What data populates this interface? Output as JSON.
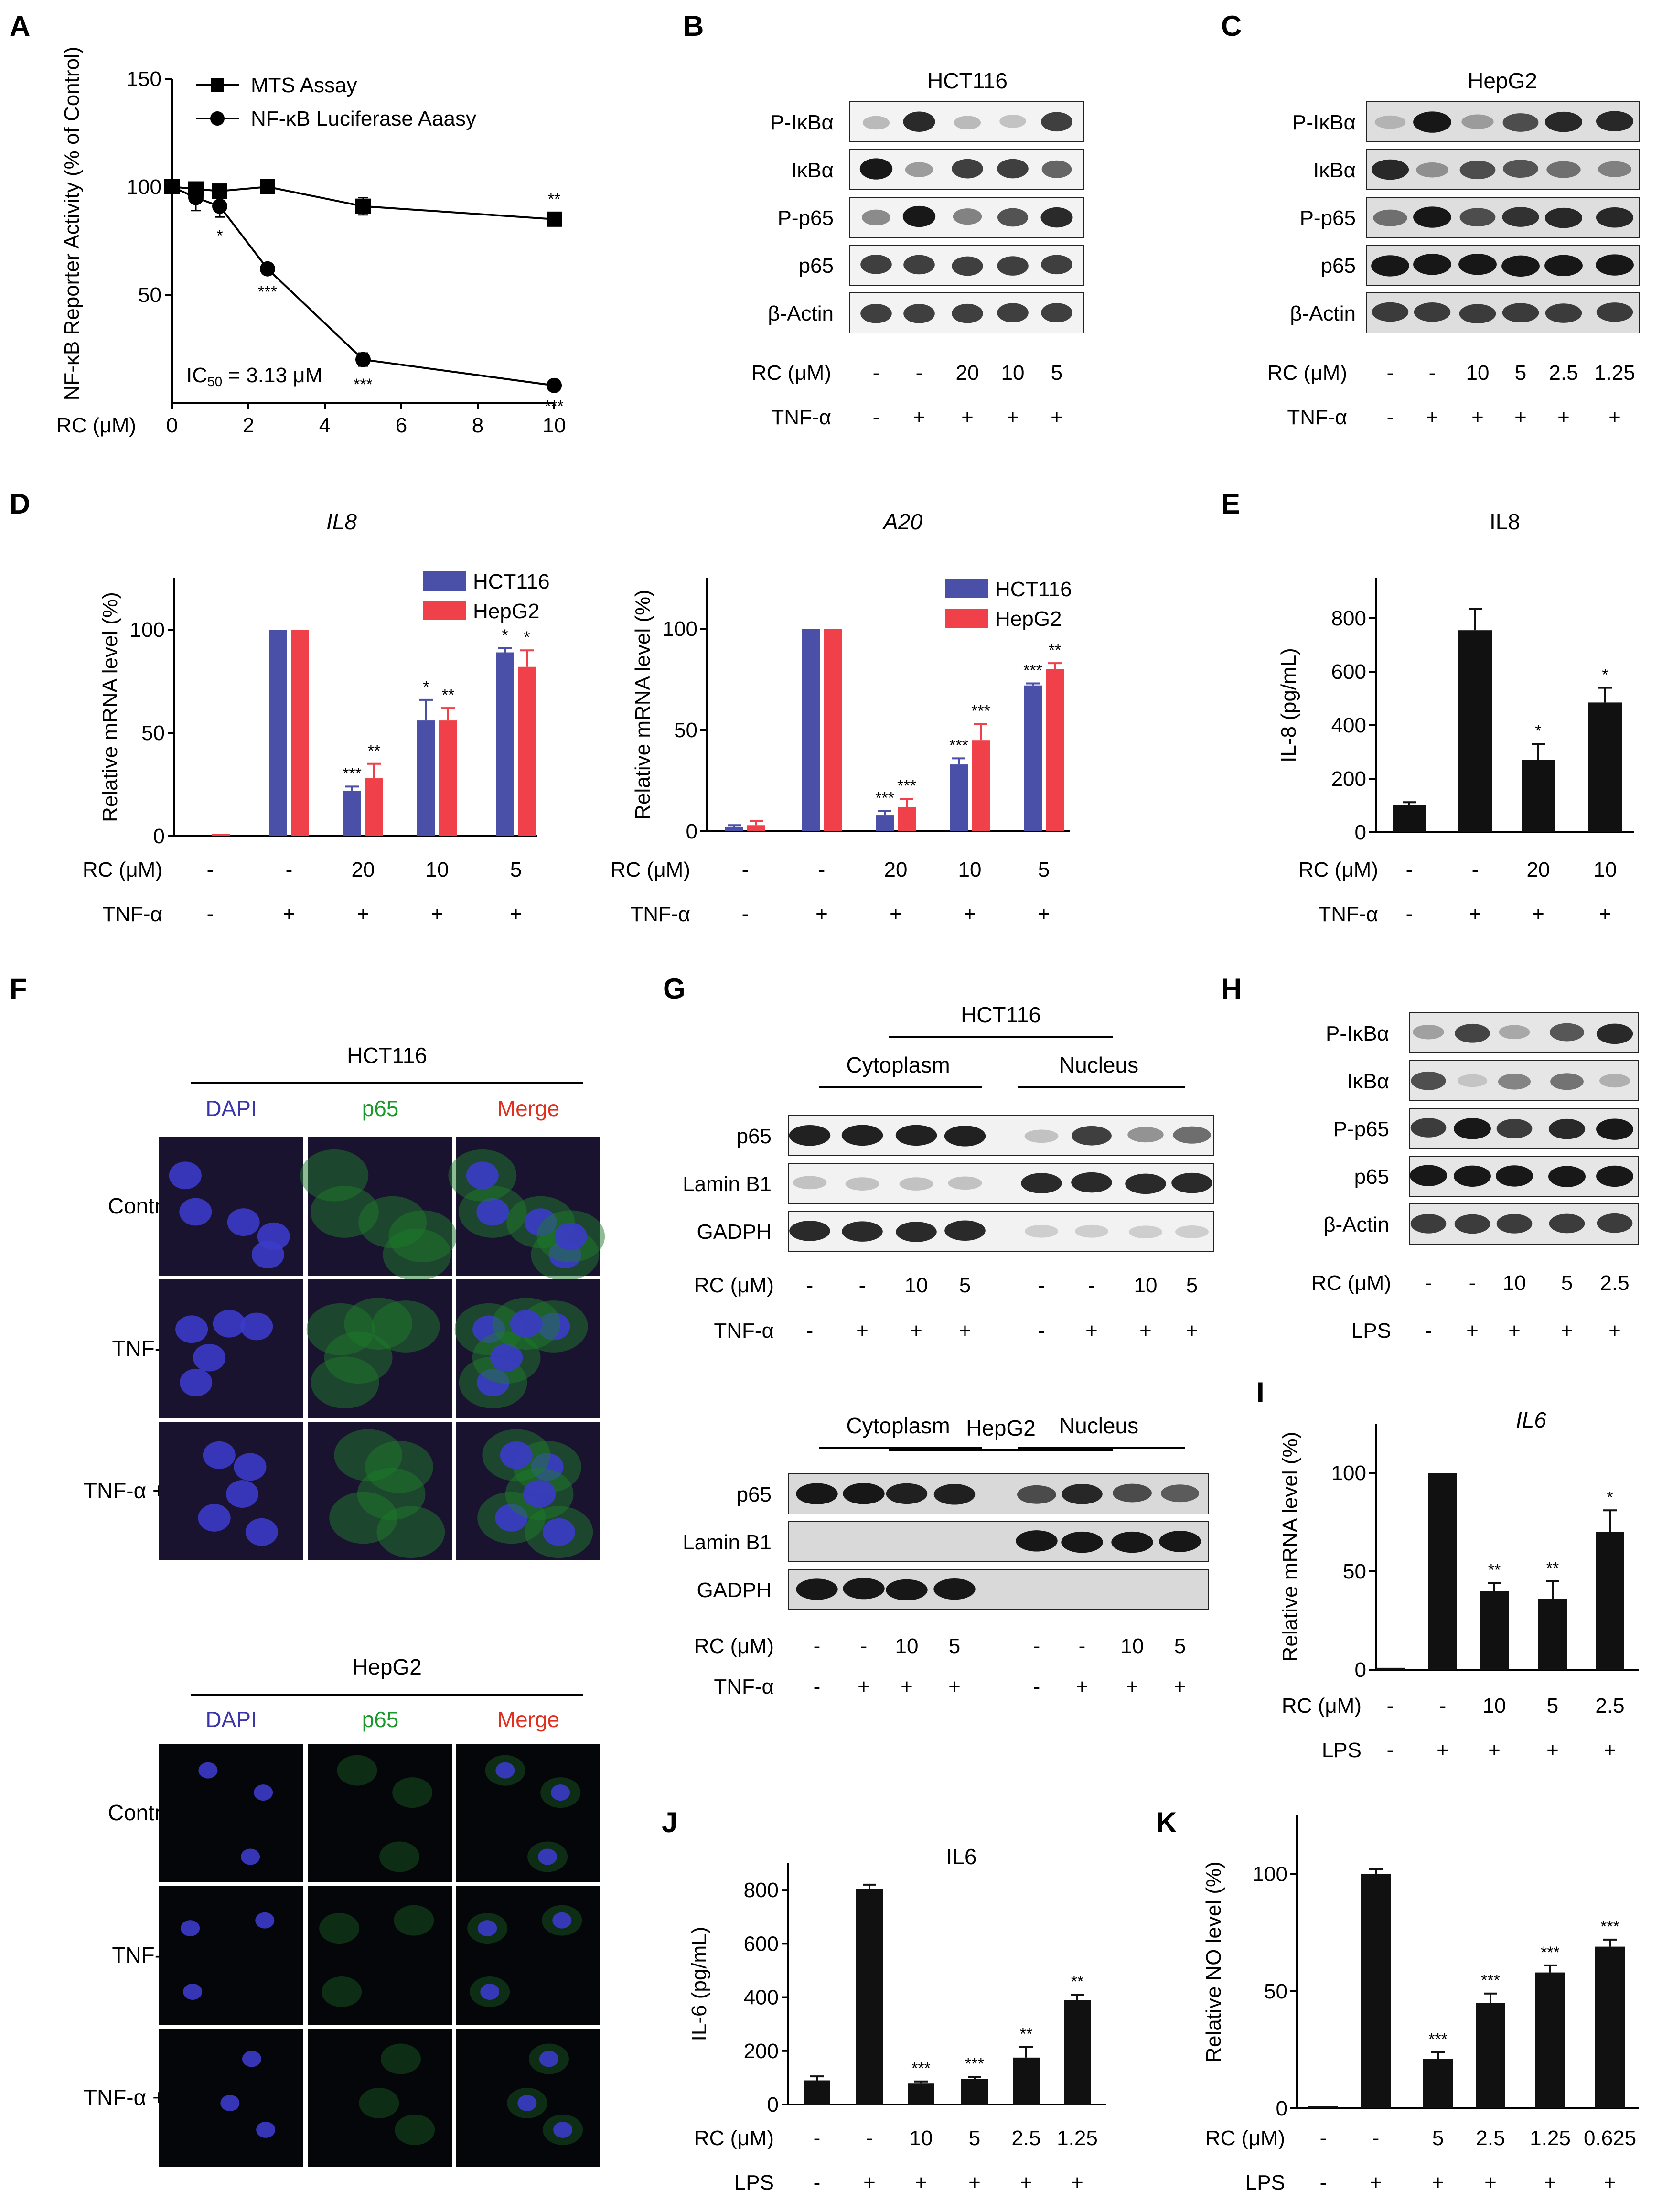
{
  "panel_letters": [
    "A",
    "B",
    "C",
    "D",
    "E",
    "F",
    "G",
    "H",
    "I",
    "J",
    "K"
  ],
  "colors": {
    "hct116": "#4a4fa8",
    "hepg2": "#f0414a",
    "bar": "#111111",
    "dapi": "#3a36a8",
    "p65": "#1a9a2a",
    "merge": "#e03020"
  },
  "blots": {
    "B": {
      "title": "HCT116",
      "proteins": [
        "P-IκBα",
        "IκBα",
        "P-p65",
        "p65",
        "β-Actin"
      ],
      "rc_label": "RC (μM)",
      "rc": [
        "-",
        "-",
        "20",
        "10",
        "5"
      ],
      "tnf_label": "TNF-α",
      "tnf": [
        "-",
        "+",
        "+",
        "+",
        "+"
      ]
    },
    "C": {
      "title": "HepG2",
      "proteins": [
        "P-IκBα",
        "IκBα",
        "P-p65",
        "p65",
        "β-Actin"
      ],
      "rc_label": "RC (μM)",
      "rc": [
        "-",
        "-",
        "10",
        "5",
        "2.5",
        "1.25"
      ],
      "tnf_label": "TNF-α",
      "tnf": [
        "-",
        "+",
        "+",
        "+",
        "+",
        "+"
      ]
    },
    "G1": {
      "title": "HCT116",
      "cyto": "Cytoplasm",
      "nucleus": "Nucleus",
      "proteins": [
        "p65",
        "Lamin B1",
        "GADPH"
      ],
      "rc_label": "RC (μM)",
      "rc": [
        "-",
        "-",
        "10",
        "5",
        "-",
        "-",
        "10",
        "5"
      ],
      "tnf_label": "TNF-α",
      "tnf": [
        "-",
        "+",
        "+",
        "+",
        "-",
        "+",
        "+",
        "+"
      ]
    },
    "G2": {
      "title": "HepG2",
      "cyto": "Cytoplasm",
      "nucleus": "Nucleus",
      "proteins": [
        "p65",
        "Lamin B1",
        "GADPH"
      ],
      "rc_label": "RC (μM)",
      "rc": [
        "-",
        "-",
        "10",
        "5",
        "-",
        "-",
        "10",
        "5"
      ],
      "tnf_label": "TNF-α",
      "tnf": [
        "-",
        "+",
        "+",
        "+",
        "-",
        "+",
        "+",
        "+"
      ]
    },
    "H": {
      "proteins": [
        "P-IκBα",
        "IκBα",
        "P-p65",
        "p65",
        "β-Actin"
      ],
      "rc_label": "RC (μM)",
      "rc": [
        "-",
        "-",
        "10",
        "5",
        "2.5"
      ],
      "lps_label": "LPS",
      "lps": [
        "-",
        "+",
        "+",
        "+",
        "+"
      ]
    }
  },
  "micro": {
    "F1": {
      "title": "HCT116",
      "cols": [
        "DAPI",
        "p65",
        "Merge"
      ],
      "rows": [
        "Control",
        "TNF-α",
        "TNF-α + RC"
      ]
    },
    "F2": {
      "title": "HepG2",
      "cols": [
        "DAPI",
        "p65",
        "Merge"
      ],
      "rows": [
        "Control",
        "TNF-α",
        "TNF-α + RC"
      ]
    }
  },
  "chart_data": [
    {
      "panel": "A",
      "type": "line",
      "ylabel": "NF-κB Reporter Activity (% of Control)",
      "xlabel": "RC (μM)",
      "xlim": [
        0,
        10
      ],
      "ylim": [
        0,
        150
      ],
      "xticks": [
        "0",
        "2",
        "4",
        "6",
        "8",
        "10"
      ],
      "yticks": [
        "50",
        "100",
        "150"
      ],
      "annotation": "IC50 = 3.13 μM",
      "series": [
        {
          "name": "MTS Assay",
          "marker": "square",
          "x": [
            0,
            0.625,
            1.25,
            2.5,
            5,
            10
          ],
          "y": [
            100,
            99,
            98,
            100,
            91,
            85
          ],
          "err": [
            2,
            3,
            3,
            2,
            4,
            2
          ],
          "stars": [
            "",
            "",
            "",
            "",
            "",
            "**"
          ]
        },
        {
          "name": "NF-κB Luciferase Aaasy",
          "marker": "circle",
          "x": [
            0,
            0.625,
            1.25,
            2.5,
            5,
            10
          ],
          "y": [
            100,
            95,
            91,
            62,
            20,
            8
          ],
          "err": [
            3,
            6,
            5,
            2,
            3,
            1
          ],
          "stars": [
            "",
            "",
            "*",
            "***",
            "***",
            "***"
          ]
        }
      ]
    },
    {
      "panel": "D-IL8",
      "type": "bar",
      "title": "IL8",
      "ylabel": "Relative mRNA level (%)",
      "ylim": [
        0,
        125
      ],
      "yticks": [
        "0",
        "50",
        "100"
      ],
      "categories": [
        "1",
        "2",
        "3",
        "4",
        "5"
      ],
      "rc_label": "RC (μM)",
      "rc": [
        "-",
        "-",
        "20",
        "10",
        "5"
      ],
      "tnf_label": "TNF-α",
      "tnf": [
        "-",
        "+",
        "+",
        "+",
        "+"
      ],
      "series": [
        {
          "name": "HCT116",
          "values": [
            0,
            100,
            22,
            56,
            89
          ],
          "err": [
            0,
            0,
            2,
            10,
            2
          ],
          "stars": [
            "",
            "",
            "***",
            "*",
            "*"
          ]
        },
        {
          "name": "HepG2",
          "values": [
            1,
            100,
            28,
            56,
            82
          ],
          "err": [
            0,
            0,
            7,
            6,
            8
          ],
          "stars": [
            "",
            "",
            "**",
            "**",
            "*"
          ]
        }
      ]
    },
    {
      "panel": "D-A20",
      "type": "bar",
      "title": "A20",
      "ylabel": "Relative mRNA level (%)",
      "ylim": [
        0,
        125
      ],
      "yticks": [
        "0",
        "50",
        "100"
      ],
      "categories": [
        "1",
        "2",
        "3",
        "4",
        "5"
      ],
      "rc_label": "RC (μM)",
      "rc": [
        "-",
        "-",
        "20",
        "10",
        "5"
      ],
      "tnf_label": "TNF-α",
      "tnf": [
        "-",
        "+",
        "+",
        "+",
        "+"
      ],
      "series": [
        {
          "name": "HCT116",
          "values": [
            2,
            100,
            8,
            33,
            72
          ],
          "err": [
            1,
            0,
            2,
            3,
            1
          ],
          "stars": [
            "",
            "",
            "***",
            "***",
            "***"
          ]
        },
        {
          "name": "HepG2",
          "values": [
            3,
            100,
            12,
            45,
            80
          ],
          "err": [
            2,
            0,
            4,
            8,
            3
          ],
          "stars": [
            "",
            "",
            "***",
            "***",
            "**"
          ]
        }
      ]
    },
    {
      "panel": "E",
      "type": "bar",
      "title": "IL8",
      "ylabel": "IL-8 (pg/mL)",
      "ylim": [
        0,
        950
      ],
      "yticks": [
        "0",
        "200",
        "400",
        "600",
        "800"
      ],
      "categories": [
        "1",
        "2",
        "3",
        "4"
      ],
      "rc_label": "RC (μM)",
      "rc": [
        "-",
        "-",
        "20",
        "10"
      ],
      "tnf_label": "TNF-α",
      "tnf": [
        "-",
        "+",
        "+",
        "+"
      ],
      "series": [
        {
          "values": [
            100,
            755,
            270,
            485
          ],
          "err": [
            12,
            80,
            60,
            55
          ],
          "stars": [
            "",
            "",
            "*",
            "*"
          ]
        }
      ]
    },
    {
      "panel": "I",
      "type": "bar",
      "title": "IL6",
      "ylabel": "Relative mRNA level (%)",
      "ylim": [
        0,
        125
      ],
      "yticks": [
        "0",
        "50",
        "100"
      ],
      "categories": [
        "1",
        "2",
        "3",
        "4",
        "5"
      ],
      "rc_label": "RC (μM)",
      "rc": [
        "-",
        "-",
        "10",
        "5",
        "2.5"
      ],
      "lps_label": "LPS",
      "lps": [
        "-",
        "+",
        "+",
        "+",
        "+"
      ],
      "series": [
        {
          "values": [
            1,
            100,
            40,
            36,
            70
          ],
          "err": [
            0,
            0,
            4,
            9,
            11
          ],
          "stars": [
            "",
            "",
            "**",
            "**",
            "*"
          ]
        }
      ]
    },
    {
      "panel": "J",
      "type": "bar",
      "title": "IL6",
      "ylabel": "IL-6 (pg/mL)",
      "ylim": [
        0,
        900
      ],
      "yticks": [
        "0",
        "200",
        "400",
        "600",
        "800"
      ],
      "categories": [
        "1",
        "2",
        "3",
        "4",
        "5",
        "6"
      ],
      "rc_label": "RC (μM)",
      "rc": [
        "-",
        "-",
        "10",
        "5",
        "2.5",
        "1.25"
      ],
      "lps_label": "LPS",
      "lps": [
        "-",
        "+",
        "+",
        "+",
        "+",
        "+"
      ],
      "series": [
        {
          "values": [
            90,
            805,
            78,
            95,
            175,
            390
          ],
          "err": [
            15,
            15,
            8,
            8,
            40,
            20
          ],
          "stars": [
            "",
            "",
            "***",
            "***",
            "**",
            "**"
          ]
        }
      ]
    },
    {
      "panel": "K",
      "type": "bar",
      "ylabel": "Relative NO level (%)",
      "ylim": [
        0,
        125
      ],
      "yticks": [
        "0",
        "50",
        "100"
      ],
      "categories": [
        "1",
        "2",
        "3",
        "4",
        "5",
        "6"
      ],
      "rc_label": "RC (μM)",
      "rc": [
        "-",
        "-",
        "5",
        "2.5",
        "1.25",
        "0.625"
      ],
      "lps_label": "LPS",
      "lps": [
        "-",
        "+",
        "+",
        "+",
        "+",
        "+"
      ],
      "series": [
        {
          "values": [
            1,
            100,
            21,
            45,
            58,
            69
          ],
          "err": [
            0,
            2,
            3,
            4,
            3,
            3
          ],
          "stars": [
            "",
            "",
            "***",
            "***",
            "***",
            "***"
          ]
        }
      ]
    }
  ]
}
